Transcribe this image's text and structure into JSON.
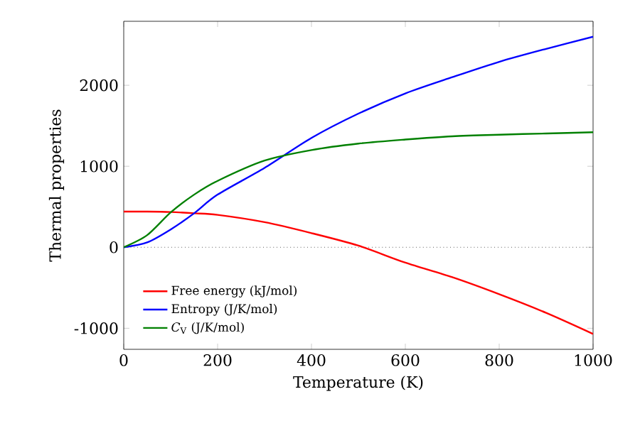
{
  "chart_data": {
    "type": "line",
    "xlabel": "Temperature (K)",
    "ylabel": "Thermal properties",
    "xlim": [
      0,
      1000
    ],
    "ylim": [
      -1260,
      2790
    ],
    "xticks": [
      0,
      200,
      400,
      600,
      800,
      1000
    ],
    "yticks": [
      -1000,
      0,
      1000,
      2000
    ],
    "x": [
      0,
      50,
      100,
      150,
      200,
      300,
      400,
      500,
      600,
      700,
      800,
      900,
      1000
    ],
    "series": [
      {
        "name": "Free energy (kJ/mol)",
        "color": "#ff0000",
        "values": [
          440,
          440,
          435,
          420,
          400,
          310,
          175,
          20,
          -190,
          -370,
          -580,
          -810,
          -1070
        ]
      },
      {
        "name": "Entropy (J/K/mol)",
        "color": "#0000ff",
        "values": [
          0,
          60,
          220,
          420,
          650,
          980,
          1350,
          1650,
          1900,
          2100,
          2290,
          2450,
          2600
        ]
      },
      {
        "name": "*C*$_{V}$ (J/K/mol)",
        "color": "#008000",
        "values": [
          0,
          150,
          430,
          650,
          820,
          1070,
          1200,
          1280,
          1330,
          1370,
          1390,
          1405,
          1420
        ]
      }
    ],
    "ref_lines": [
      {
        "axis": "y",
        "value": 0,
        "color": "#000000",
        "line_style": "dotted"
      }
    ],
    "legend": "bottom left",
    "grid": false,
    "marker": "none",
    "line_style": "solid"
  }
}
